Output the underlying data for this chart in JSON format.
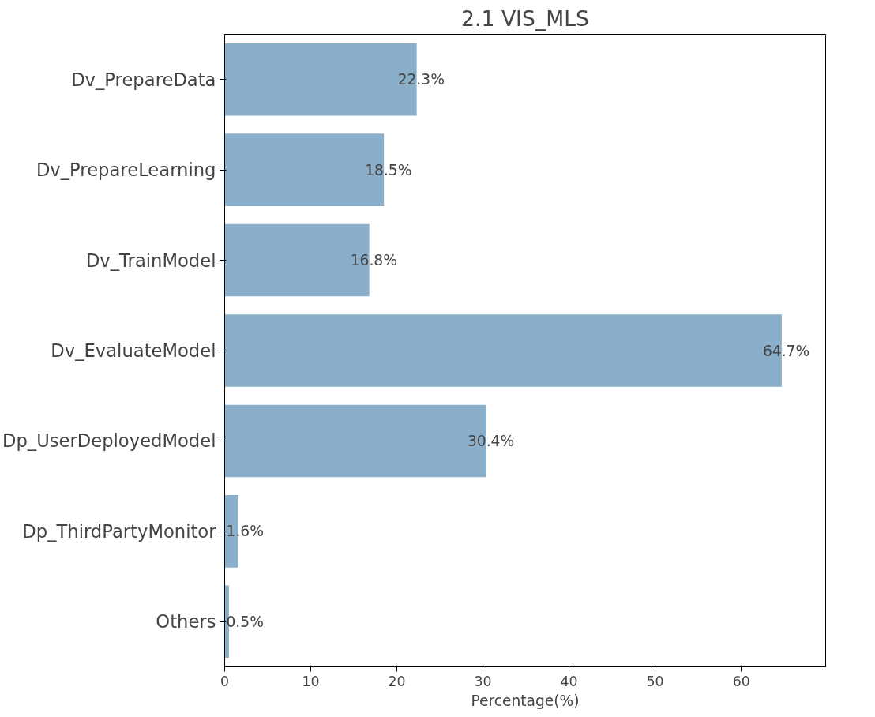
{
  "chart_data": {
    "type": "bar",
    "orientation": "horizontal",
    "title": "2.1 VIS_MLS",
    "xlabel": "Percentage(%)",
    "categories": [
      "Dv_PrepareData",
      "Dv_PrepareLearning",
      "Dv_TrainModel",
      "Dv_EvaluateModel",
      "Dp_UserDeployedModel",
      "Dp_ThirdPartyMonitor",
      "Others"
    ],
    "values": [
      22.3,
      18.5,
      16.8,
      64.7,
      30.4,
      1.6,
      0.5
    ],
    "value_labels": [
      "22.3%",
      "18.5%",
      "16.8%",
      "64.7%",
      "30.4%",
      "1.6%",
      "0.5%"
    ],
    "color": "#8aafcb",
    "xlim": [
      0,
      69.8
    ],
    "xticks": [
      0,
      10,
      20,
      30,
      40,
      50,
      60
    ],
    "grid": false
  }
}
